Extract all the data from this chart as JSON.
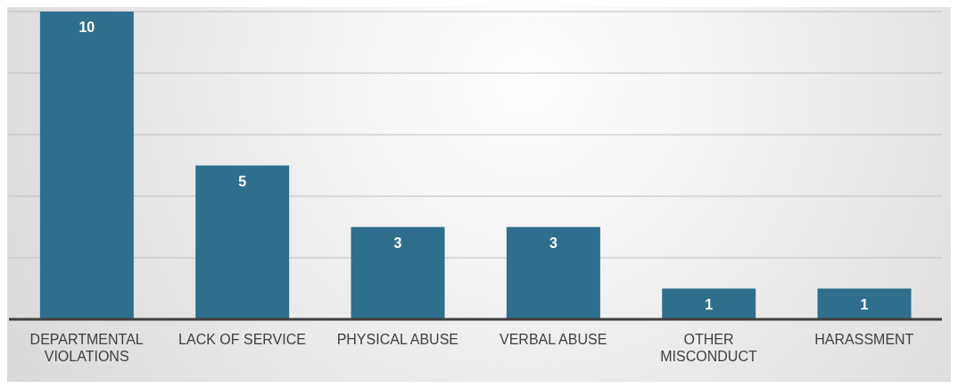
{
  "chart_data": {
    "type": "bar",
    "categories": [
      "DEPARTMENTAL VIOLATIONS",
      "LACK OF SERVICE",
      "PHYSICAL ABUSE",
      "VERBAL ABUSE",
      "OTHER MISCONDUCT",
      "HARASSMENT"
    ],
    "values": [
      10,
      5,
      3,
      3,
      1,
      1
    ],
    "color": "#2e6f8e",
    "ylim": [
      0,
      10
    ],
    "yticks": [
      {
        "value": 0,
        "label": null
      },
      {
        "value": 2,
        "label": null
      },
      {
        "value": 4,
        "label": null
      },
      {
        "value": 6,
        "label": null
      },
      {
        "value": 8,
        "label": null
      },
      {
        "value": 10,
        "label": null
      }
    ],
    "grid": "y",
    "tick_labels": "x",
    "data_labels": true
  }
}
